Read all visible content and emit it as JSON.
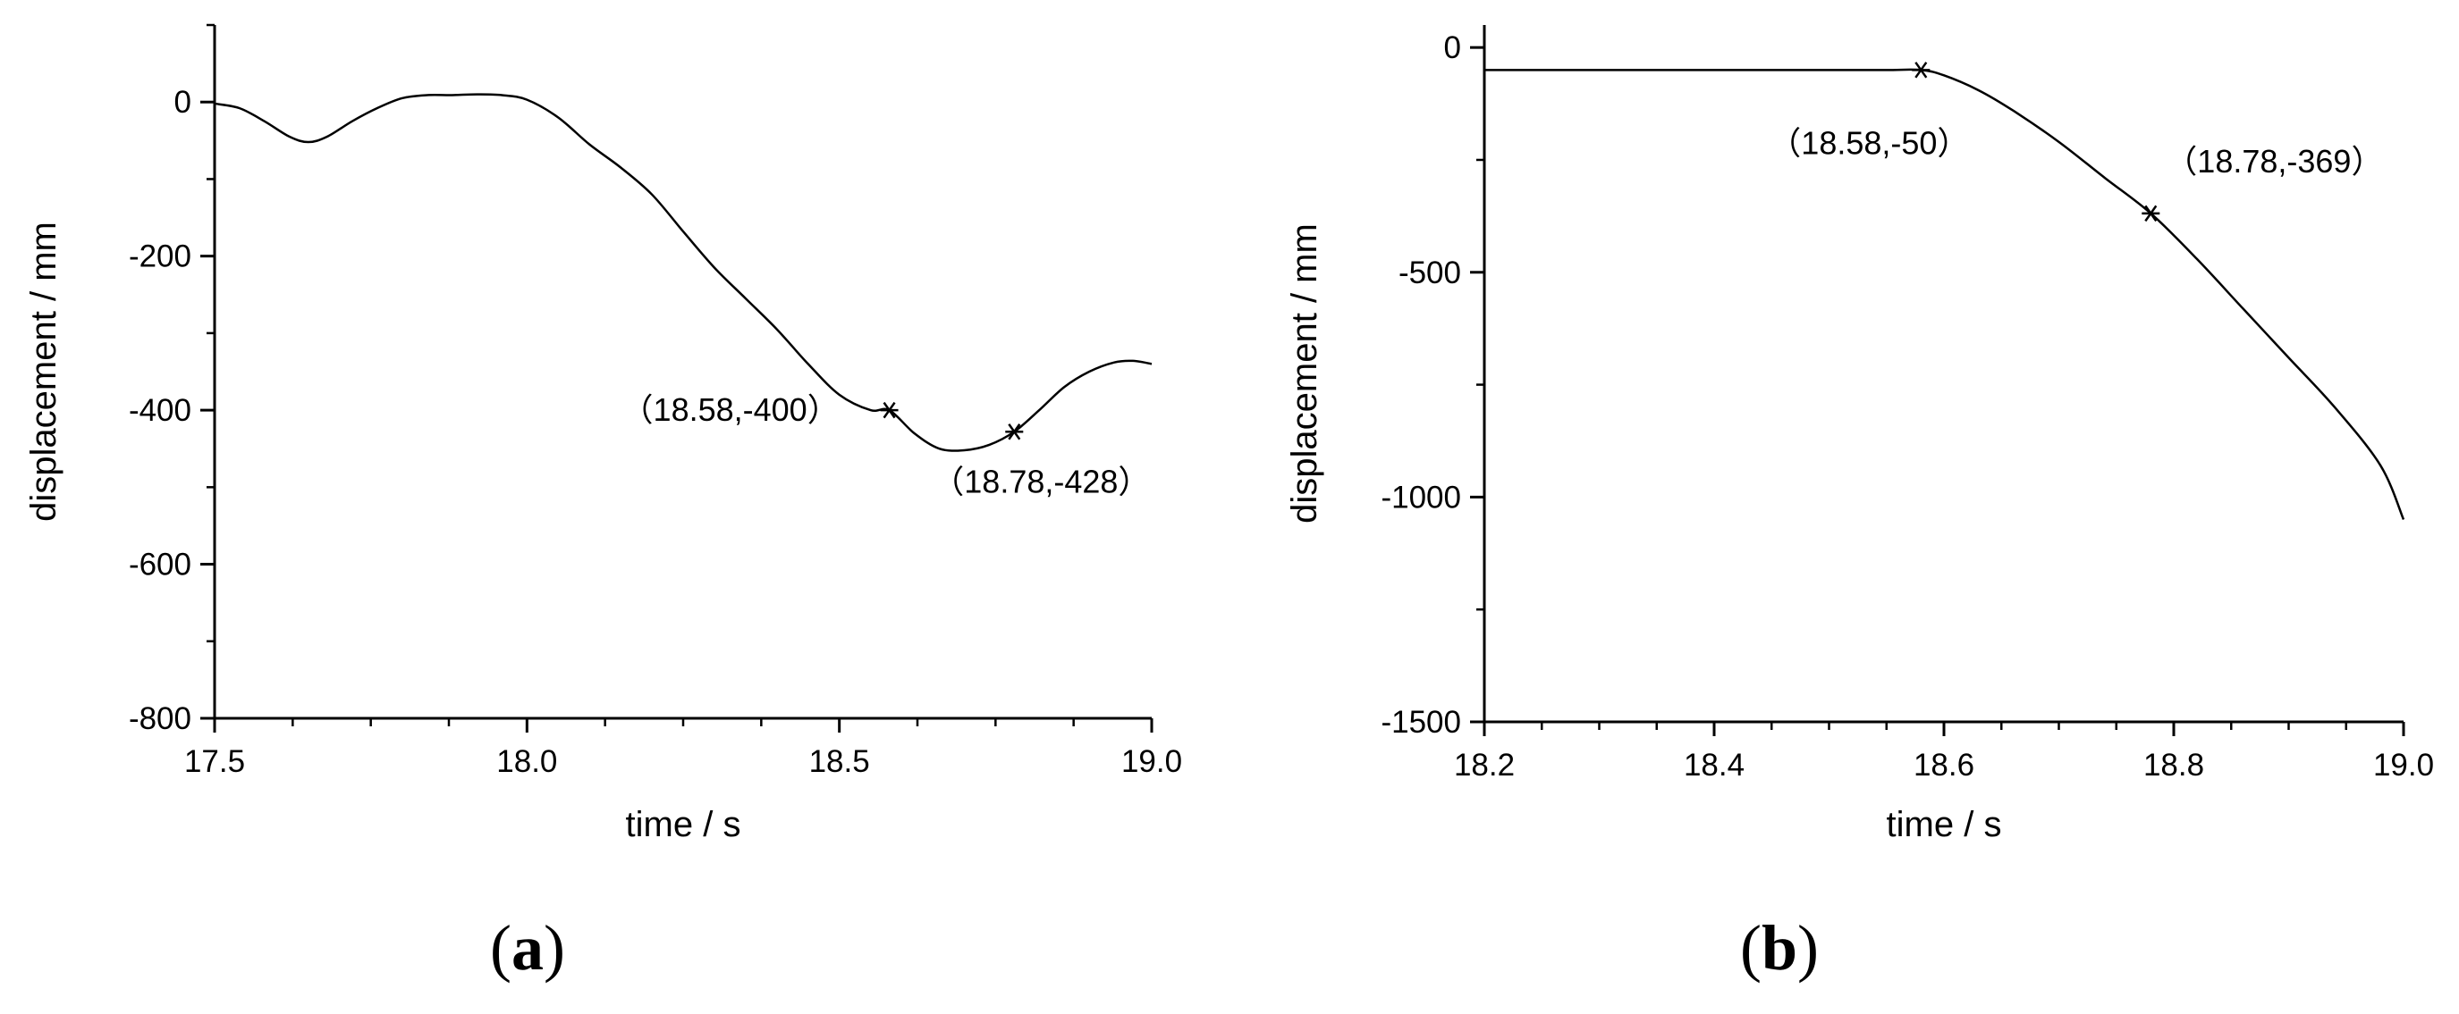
{
  "chart_data": [
    {
      "type": "line",
      "panel_label": "a",
      "xlabel": "time / s",
      "ylabel": "displacement / mm",
      "xlim": [
        17.5,
        19.0
      ],
      "ylim": [
        -800,
        100
      ],
      "x_ticks": [
        17.5,
        18.0,
        18.5,
        19.0
      ],
      "x_tick_labels": [
        "17.5",
        "18.0",
        "18.5",
        "19.0"
      ],
      "y_ticks": [
        0,
        -200,
        -400,
        -600,
        -800
      ],
      "y_tick_labels": [
        "0",
        "-200",
        "-400",
        "-600",
        "-800"
      ],
      "grid": false,
      "series": [
        {
          "x": [
            17.5,
            17.54,
            17.58,
            17.62,
            17.65,
            17.68,
            17.72,
            17.76,
            17.8,
            17.84,
            17.88,
            17.92,
            17.96,
            18.0,
            18.05,
            18.1,
            18.15,
            18.2,
            18.25,
            18.3,
            18.35,
            18.4,
            18.45,
            18.5,
            18.55,
            18.58,
            18.62,
            18.66,
            18.7,
            18.74,
            18.78,
            18.82,
            18.86,
            18.9,
            18.94,
            18.97,
            19.0
          ],
          "y": [
            -2,
            -8,
            -25,
            -45,
            -52,
            -45,
            -25,
            -8,
            5,
            9,
            9,
            10,
            9,
            3,
            -20,
            -55,
            -85,
            -120,
            -168,
            -215,
            -255,
            -295,
            -340,
            -380,
            -400,
            -400,
            -430,
            -450,
            -452,
            -445,
            -428,
            -400,
            -370,
            -350,
            -338,
            -336,
            -340
          ]
        }
      ],
      "markers": [
        {
          "x": 18.58,
          "y": -400,
          "label": "（18.58,-400）"
        },
        {
          "x": 18.78,
          "y": -428,
          "label": "（18.78,-428）"
        }
      ]
    },
    {
      "type": "line",
      "panel_label": "b",
      "xlabel": "time / s",
      "ylabel": "displacement / mm",
      "xlim": [
        18.2,
        19.0
      ],
      "ylim": [
        -1500,
        50
      ],
      "x_ticks": [
        18.2,
        18.4,
        18.6,
        18.8,
        19.0
      ],
      "x_tick_labels": [
        "18.2",
        "18.4",
        "18.6",
        "18.8",
        "19.0"
      ],
      "y_ticks": [
        0,
        -500,
        -1000,
        -1500
      ],
      "y_tick_labels": [
        "0",
        "-500",
        "-1000",
        "-1500"
      ],
      "grid": false,
      "series": [
        {
          "x": [
            18.2,
            18.3,
            18.4,
            18.5,
            18.55,
            18.58,
            18.6,
            18.63,
            18.66,
            18.7,
            18.74,
            18.78,
            18.82,
            18.86,
            18.9,
            18.94,
            18.98,
            19.0
          ],
          "y": [
            -50,
            -50,
            -50,
            -50,
            -50,
            -50,
            -62,
            -95,
            -140,
            -210,
            -290,
            -369,
            -470,
            -580,
            -690,
            -800,
            -930,
            -1050
          ]
        }
      ],
      "markers": [
        {
          "x": 18.58,
          "y": -50,
          "label": "（18.58,-50）"
        },
        {
          "x": 18.78,
          "y": -369,
          "label": "（18.78,-369）"
        }
      ]
    }
  ]
}
